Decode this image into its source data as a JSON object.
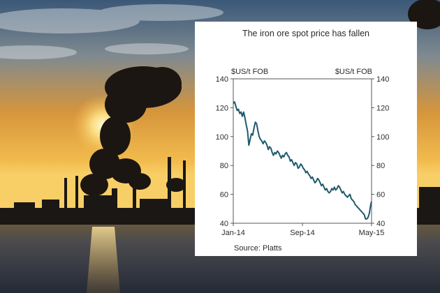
{
  "chart_data": {
    "type": "line",
    "title": "The iron ore spot price has fallen",
    "ylabel_left": "$US/t FOB",
    "ylabel_right": "$US/t FOB",
    "ylim": [
      40,
      140
    ],
    "y_ticks": [
      "40",
      "60",
      "80",
      "100",
      "120",
      "140"
    ],
    "x_ticks": [
      "Jan-14",
      "Sep-14",
      "May-15"
    ],
    "x_tick_positions": [
      0,
      8,
      16
    ],
    "xlim": [
      0,
      16
    ],
    "source": "Source: Platts",
    "line_color": "#1e5a6e",
    "series": [
      {
        "x": [
          0,
          0.15,
          0.3,
          0.45,
          0.6,
          0.75,
          0.9,
          1.05,
          1.2,
          1.35,
          1.5,
          1.65,
          1.8,
          1.95,
          2.1,
          2.25,
          2.4,
          2.55,
          2.7,
          2.85,
          3.0,
          3.15,
          3.3,
          3.45,
          3.6,
          3.75,
          3.9,
          4.05,
          4.2,
          4.35,
          4.5,
          4.65,
          4.8,
          4.95,
          5.1,
          5.25,
          5.4,
          5.55,
          5.7,
          5.85,
          6.0,
          6.15,
          6.3,
          6.45,
          6.6,
          6.75,
          6.9,
          7.05,
          7.2,
          7.35,
          7.5,
          7.65,
          7.8,
          7.95,
          8.1,
          8.25,
          8.4,
          8.55,
          8.7,
          8.85,
          9.0,
          9.15,
          9.3,
          9.45,
          9.6,
          9.75,
          9.9,
          10.05,
          10.2,
          10.35,
          10.5,
          10.65,
          10.8,
          10.95,
          11.1,
          11.25,
          11.4,
          11.55,
          11.7,
          11.85,
          12.0,
          12.15,
          12.3,
          12.45,
          12.6,
          12.75,
          12.9,
          13.05,
          13.2,
          13.35,
          13.5,
          13.65,
          13.8,
          13.95,
          14.1,
          14.25,
          14.4,
          14.55,
          14.7,
          14.85,
          15.0,
          15.15,
          15.3,
          15.45,
          15.6,
          15.75,
          15.9,
          16.0
        ],
        "values": [
          123,
          124,
          121,
          118,
          119,
          116,
          117,
          114,
          117,
          113,
          108,
          104,
          94,
          98,
          102,
          101,
          106,
          110,
          109,
          104,
          100,
          98,
          97,
          95,
          97,
          96,
          94,
          91,
          93,
          92,
          89,
          87,
          89,
          88,
          90,
          89,
          87,
          85,
          87,
          86,
          88,
          89,
          87,
          86,
          83,
          84,
          82,
          80,
          82,
          81,
          78,
          79,
          81,
          80,
          78,
          77,
          75,
          76,
          74,
          73,
          71,
          72,
          70,
          68,
          69,
          71,
          70,
          68,
          66,
          67,
          65,
          63,
          64,
          62,
          61,
          62,
          64,
          63,
          65,
          63,
          64,
          66,
          65,
          63,
          61,
          62,
          60,
          59,
          58,
          59,
          60,
          57,
          56,
          55,
          53,
          52,
          51,
          50,
          49,
          48,
          47,
          46,
          43,
          43,
          44,
          47,
          53,
          55
        ]
      }
    ]
  },
  "scene_colors": {
    "sky_top": "#3f5f82",
    "sky_mid": "#d99a3e",
    "horizon": "#f6c455",
    "water": "#2d3440",
    "smoke": "#1b1512"
  }
}
